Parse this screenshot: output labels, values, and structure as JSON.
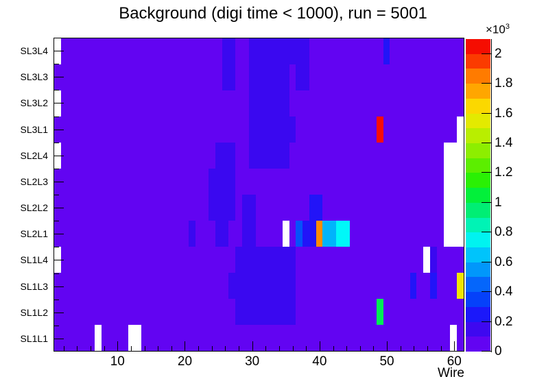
{
  "page": {
    "background": "#ffffff"
  },
  "chart_data": {
    "type": "heatmap",
    "title": "Background (digi time < 1000), run = 5001",
    "xlabel": "Wire",
    "x_axis": {
      "min_wire": 1,
      "max_wire": 61,
      "major_ticks": [
        10,
        20,
        30,
        40,
        50,
        60
      ],
      "major_tick_labels": [
        "10",
        "20",
        "30",
        "40",
        "50",
        "60"
      ],
      "minor_tick_step": 2
    },
    "y_rows_top_to_bottom": [
      "SL3L4",
      "SL3L3",
      "SL3L2",
      "SL3L1",
      "SL2L4",
      "SL2L3",
      "SL2L2",
      "SL2L1",
      "SL1L4",
      "SL1L3",
      "SL1L2",
      "SL1L1"
    ],
    "colors": {
      "bg": "#6204f2",
      "band1": "#3a08f0",
      "band2": "#2214f8",
      "blue": "#0552fa",
      "azure": "#00b4fb",
      "cyan": "#00f8f8",
      "green": "#00ee55",
      "yellow": "#f0e600",
      "orange": "#ff8b00",
      "red": "#f90d03",
      "empty": "#ffffff"
    },
    "background_band": {
      "color": "bg",
      "value": "0-100"
    },
    "cells": [
      {
        "wires": [
          26,
          27
        ],
        "rows": [
          0,
          1
        ],
        "color": "band1",
        "value": "~150"
      },
      {
        "wires": [
          30,
          38
        ],
        "rows": [
          0,
          0
        ],
        "color": "band1",
        "value": "~150"
      },
      {
        "wires": [
          30,
          35
        ],
        "rows": [
          1,
          1
        ],
        "color": "band1",
        "value": "~150"
      },
      {
        "wires": [
          37,
          38
        ],
        "rows": [
          1,
          1
        ],
        "color": "band1",
        "value": "~150"
      },
      {
        "wires": [
          30,
          35
        ],
        "rows": [
          2,
          4
        ],
        "color": "band1",
        "value": "~150"
      },
      {
        "wires": [
          36,
          36
        ],
        "rows": [
          3,
          3
        ],
        "color": "band1",
        "value": "~150"
      },
      {
        "wires": [
          25,
          27
        ],
        "rows": [
          4,
          4
        ],
        "color": "band1",
        "value": "~150"
      },
      {
        "wires": [
          24,
          27
        ],
        "rows": [
          5,
          6
        ],
        "color": "band1",
        "value": "~150"
      },
      {
        "wires": [
          29,
          30
        ],
        "rows": [
          6,
          7
        ],
        "color": "band1",
        "value": "~150"
      },
      {
        "wires": [
          25,
          26
        ],
        "rows": [
          7,
          7
        ],
        "color": "band1",
        "value": "~150"
      },
      {
        "wires": [
          21,
          21
        ],
        "rows": [
          7,
          7
        ],
        "color": "band1",
        "value": "~150"
      },
      {
        "wires": [
          28,
          36
        ],
        "rows": [
          8,
          10
        ],
        "color": "band1",
        "value": "~150"
      },
      {
        "wires": [
          27,
          27
        ],
        "rows": [
          9,
          9
        ],
        "color": "band1",
        "value": "~150"
      },
      {
        "wires": [
          57,
          57
        ],
        "rows": [
          8,
          8
        ],
        "color": "band1",
        "value": "~150"
      },
      {
        "wires": [
          50,
          50
        ],
        "rows": [
          0,
          0
        ],
        "color": "band2",
        "value": "~250"
      },
      {
        "wires": [
          39,
          40
        ],
        "rows": [
          6,
          6
        ],
        "color": "band2",
        "value": "~250"
      },
      {
        "wires": [
          38,
          39
        ],
        "rows": [
          7,
          7
        ],
        "color": "band2",
        "value": "~250"
      },
      {
        "wires": [
          54,
          54
        ],
        "rows": [
          9,
          9
        ],
        "color": "band2",
        "value": "~250"
      },
      {
        "wires": [
          57,
          57
        ],
        "rows": [
          9,
          9
        ],
        "color": "band2",
        "value": "~250"
      },
      {
        "wires": [
          49,
          49
        ],
        "rows": [
          3,
          3
        ],
        "color": "red",
        "value": "~2000"
      },
      {
        "wires": [
          37,
          37
        ],
        "rows": [
          7,
          7
        ],
        "color": "blue",
        "value": "~450"
      },
      {
        "wires": [
          40,
          40
        ],
        "rows": [
          7,
          7
        ],
        "color": "orange",
        "value": "~1750"
      },
      {
        "wires": [
          41,
          42
        ],
        "rows": [
          7,
          7
        ],
        "color": "azure",
        "value": "~550"
      },
      {
        "wires": [
          43,
          44
        ],
        "rows": [
          7,
          7
        ],
        "color": "cyan",
        "value": "~650"
      },
      {
        "wires": [
          49,
          49
        ],
        "rows": [
          10,
          10
        ],
        "color": "green",
        "value": "~1000"
      },
      {
        "wires": [
          61,
          61
        ],
        "rows": [
          9,
          9
        ],
        "color": "yellow",
        "value": "~1550"
      },
      {
        "wires": [
          1,
          1
        ],
        "rows": [
          0,
          0
        ],
        "color": "empty",
        "value": "no data"
      },
      {
        "wires": [
          1,
          1
        ],
        "rows": [
          2,
          2
        ],
        "color": "empty",
        "value": "no data"
      },
      {
        "wires": [
          1,
          1
        ],
        "rows": [
          4,
          4
        ],
        "color": "empty",
        "value": "no data"
      },
      {
        "wires": [
          1,
          1
        ],
        "rows": [
          8,
          8
        ],
        "color": "empty",
        "value": "no data"
      },
      {
        "wires": [
          7,
          7
        ],
        "rows": [
          11,
          11
        ],
        "color": "empty",
        "value": "no data"
      },
      {
        "wires": [
          12,
          13
        ],
        "rows": [
          11,
          11
        ],
        "color": "empty",
        "value": "no data"
      },
      {
        "wires": [
          35,
          35
        ],
        "rows": [
          7,
          7
        ],
        "color": "empty",
        "value": "no data"
      },
      {
        "wires": [
          56,
          56
        ],
        "rows": [
          8,
          8
        ],
        "color": "empty",
        "value": "no data"
      },
      {
        "wires": [
          60,
          60
        ],
        "rows": [
          11,
          11
        ],
        "color": "empty",
        "value": "no data"
      },
      {
        "wires": [
          59,
          60
        ],
        "rows": [
          4,
          7
        ],
        "color": "empty",
        "value": "no data"
      },
      {
        "wires": [
          61,
          61
        ],
        "rows": [
          3,
          7
        ],
        "color": "empty",
        "value": "no data"
      }
    ],
    "colorbar": {
      "multiplier_prefix": "×10",
      "multiplier_exp": "3",
      "zmax": 2.1,
      "tick_values": [
        0,
        0.2,
        0.4,
        0.6,
        0.8,
        1,
        1.2,
        1.4,
        1.6,
        1.8,
        2
      ],
      "tick_labels": [
        "0",
        "0.2",
        "0.4",
        "0.6",
        "0.8",
        "1",
        "1.2",
        "1.4",
        "1.6",
        "1.8",
        "2"
      ],
      "band_colors_bottom_to_top": [
        "#6204f2",
        "#3e08f0",
        "#1b18fa",
        "#0541fa",
        "#0566fb",
        "#0197fb",
        "#00c4fb",
        "#00f3f0",
        "#00f3b5",
        "#00ee74",
        "#02f03a",
        "#2af004",
        "#5cee00",
        "#8dee00",
        "#b9ee00",
        "#e3ea00",
        "#fbd800",
        "#ffa600",
        "#ff7b00",
        "#fb3b00",
        "#f50d01"
      ]
    }
  }
}
